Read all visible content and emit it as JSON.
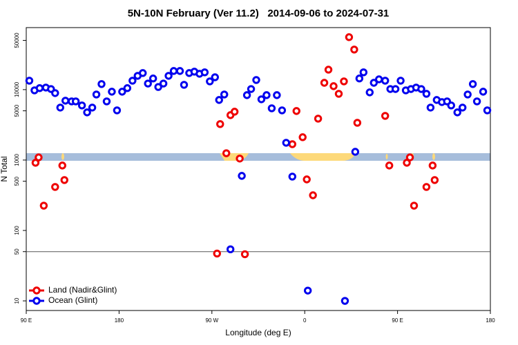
{
  "chart_data": {
    "type": "scatter",
    "title": "5N-10N February (Ver 11.2)   2014-09-06 to 2024-07-31",
    "x_label": "Longitude (deg E)",
    "y_label": "N Total",
    "xlim": [
      90,
      540
    ],
    "xticks": [
      {
        "value": 90,
        "label": "90 E"
      },
      {
        "value": 180,
        "label": "180"
      },
      {
        "value": 270,
        "label": "90 W"
      },
      {
        "value": 360,
        "label": "0"
      },
      {
        "value": 450,
        "label": "90 E"
      },
      {
        "value": 540,
        "label": "180"
      }
    ],
    "ylim": [
      7.3,
      76000
    ],
    "y_log": true,
    "yticks": [
      10,
      50,
      100,
      500,
      1000,
      5000,
      10000,
      50000
    ],
    "reference_line": 50,
    "legend": "bottom-left",
    "series": [
      {
        "name": "Land (Nadir&Glint)",
        "color": "#ee0000",
        "x": [
          99,
          102,
          107,
          118,
          125,
          127,
          275,
          278,
          284,
          288,
          292,
          297,
          302,
          348,
          352,
          358,
          362,
          368,
          373,
          379,
          383,
          388,
          393,
          398,
          403,
          408,
          411,
          438,
          442,
          459,
          462,
          466,
          478,
          484,
          486
        ],
        "values": [
          915,
          1090,
          225,
          415,
          836,
          520,
          47,
          3240,
          1250,
          4340,
          4860,
          1050,
          46,
          1680,
          4970,
          2110,
          531,
          316,
          3870,
          12500,
          19200,
          11200,
          8730,
          13100,
          55600,
          37100,
          3380,
          4240,
          836,
          915,
          1090,
          225,
          415,
          836,
          520
        ]
      },
      {
        "name": "Ocean (Glint)",
        "color": "#0000ee",
        "x": [
          93,
          98,
          103,
          109,
          114,
          118,
          123,
          128,
          134,
          138,
          144,
          149,
          154,
          158,
          163,
          168,
          173,
          178,
          183,
          188,
          193,
          198,
          203,
          208,
          213,
          218,
          223,
          228,
          233,
          239,
          243,
          248,
          253,
          258,
          263,
          268,
          273,
          277,
          282,
          288,
          299,
          304,
          308,
          313,
          318,
          323,
          328,
          333,
          338,
          342,
          348,
          363,
          399,
          409,
          413,
          417,
          423,
          427,
          432,
          438,
          443,
          448,
          453,
          458,
          463,
          468,
          473,
          478,
          482,
          488,
          493,
          498,
          502,
          508,
          513,
          518,
          523,
          527,
          533,
          537
        ],
        "values": [
          13400,
          9770,
          10500,
          10700,
          10200,
          8930,
          5560,
          6970,
          6810,
          6810,
          5960,
          4750,
          5560,
          8530,
          12000,
          6810,
          9350,
          5080,
          9350,
          10500,
          13400,
          15700,
          17200,
          12200,
          14400,
          10900,
          12200,
          15700,
          18400,
          18400,
          11700,
          17200,
          18000,
          16800,
          17600,
          13100,
          15000,
          7130,
          8530,
          54,
          596,
          8350,
          10200,
          13700,
          7290,
          8350,
          5430,
          8350,
          5080,
          1760,
          582,
          14,
          10,
          1310,
          14400,
          17600,
          9140,
          12500,
          14000,
          13400,
          10200,
          10200,
          13400,
          9770,
          10200,
          10700,
          10200,
          8730,
          5560,
          7130,
          6660,
          6810,
          5960,
          4750,
          5560,
          8530,
          12000,
          6810,
          9350,
          5080
        ]
      }
    ]
  }
}
